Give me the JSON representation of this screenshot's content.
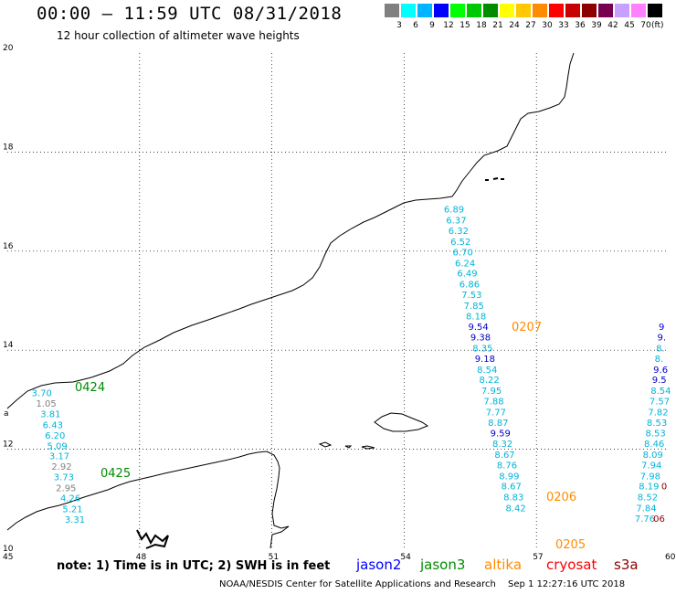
{
  "header": {
    "title": "00:00 – 11:59 UTC 08/31/2018",
    "subtitle": "12 hour collection of altimeter wave heights"
  },
  "legend": {
    "unit": "(ft)",
    "bins": [
      {
        "label": "3",
        "color": "#808080"
      },
      {
        "label": "6",
        "color": "#00ffff"
      },
      {
        "label": "9",
        "color": "#00b4ff"
      },
      {
        "label": "12",
        "color": "#0000ff"
      },
      {
        "label": "15",
        "color": "#00ff00"
      },
      {
        "label": "18",
        "color": "#00c800"
      },
      {
        "label": "21",
        "color": "#008c00"
      },
      {
        "label": "24",
        "color": "#ffff00"
      },
      {
        "label": "27",
        "color": "#ffc800"
      },
      {
        "label": "30",
        "color": "#ff8c00"
      },
      {
        "label": "33",
        "color": "#ff0000"
      },
      {
        "label": "36",
        "color": "#c80000"
      },
      {
        "label": "39",
        "color": "#8c0000"
      },
      {
        "label": "42",
        "color": "#780050"
      },
      {
        "label": "45",
        "color": "#c8a0ff"
      },
      {
        "label": "70",
        "color": "#ff80ff"
      },
      {
        "label": "",
        "color": "#000000"
      }
    ]
  },
  "map": {
    "lon_ticks": [
      "45",
      "48",
      "51",
      "54",
      "57",
      "60"
    ],
    "lat_ticks": [
      "10",
      "12",
      "14",
      "16",
      "18",
      "20"
    ],
    "lon_range": [
      45,
      60
    ],
    "lat_range": [
      10,
      20
    ]
  },
  "tracks": [
    {
      "name": "jason3-0424",
      "time_label": "0424",
      "time_color": "#008c00",
      "points": [
        {
          "lon": 45.8,
          "lat": 13.15,
          "v": "3.70",
          "c": "#00b4d8"
        },
        {
          "lon": 45.9,
          "lat": 12.93,
          "v": "1.05",
          "c": "#808080"
        },
        {
          "lon": 46.0,
          "lat": 12.72,
          "v": "3.81",
          "c": "#00b4d8"
        },
        {
          "lon": 46.05,
          "lat": 12.5,
          "v": "6.43",
          "c": "#00b4d8"
        },
        {
          "lon": 46.1,
          "lat": 12.29,
          "v": "6.20",
          "c": "#00b4d8"
        },
        {
          "lon": 46.15,
          "lat": 12.08,
          "v": "5.09",
          "c": "#00b4d8"
        },
        {
          "lon": 46.2,
          "lat": 11.87,
          "v": "3.17",
          "c": "#00b4d8"
        },
        {
          "lon": 46.25,
          "lat": 11.66,
          "v": "2.92",
          "c": "#808080"
        },
        {
          "lon": 46.3,
          "lat": 11.45,
          "v": "3.73",
          "c": "#00b4d8"
        },
        {
          "lon": 46.35,
          "lat": 11.23,
          "v": "2.95",
          "c": "#808080"
        },
        {
          "lon": 46.45,
          "lat": 11.02,
          "v": "4.26",
          "c": "#00b4d8"
        },
        {
          "lon": 46.5,
          "lat": 10.8,
          "v": "5.21",
          "c": "#00b4d8"
        },
        {
          "lon": 46.55,
          "lat": 10.59,
          "v": "3.31",
          "c": "#00b4d8"
        }
      ]
    },
    {
      "name": "jason3-0425",
      "time_label": "0425",
      "time_color": "#008c00",
      "points": []
    },
    {
      "name": "altika-0207",
      "time_label": "0207",
      "time_color": "#ff8c00",
      "points": [
        {
          "lon": 55.15,
          "lat": 16.85,
          "v": "6.89",
          "c": "#00b4d8"
        },
        {
          "lon": 55.2,
          "lat": 16.63,
          "v": "6.37",
          "c": "#00b4d8"
        },
        {
          "lon": 55.25,
          "lat": 16.42,
          "v": "6.32",
          "c": "#00b4d8"
        },
        {
          "lon": 55.3,
          "lat": 16.2,
          "v": "6.52",
          "c": "#00b4d8"
        },
        {
          "lon": 55.35,
          "lat": 15.99,
          "v": "6.70",
          "c": "#00b4d8"
        },
        {
          "lon": 55.4,
          "lat": 15.77,
          "v": "6.24",
          "c": "#00b4d8"
        },
        {
          "lon": 55.45,
          "lat": 15.56,
          "v": "6.49",
          "c": "#00b4d8"
        },
        {
          "lon": 55.5,
          "lat": 15.34,
          "v": "6.86",
          "c": "#00b4d8"
        },
        {
          "lon": 55.55,
          "lat": 15.13,
          "v": "7.53",
          "c": "#00b4d8"
        },
        {
          "lon": 55.6,
          "lat": 14.91,
          "v": "7.85",
          "c": "#00b4d8"
        },
        {
          "lon": 55.65,
          "lat": 14.7,
          "v": "8.18",
          "c": "#00b4d8"
        },
        {
          "lon": 55.7,
          "lat": 14.48,
          "v": "9.54",
          "c": "#0000c8"
        },
        {
          "lon": 55.75,
          "lat": 14.27,
          "v": "9.38",
          "c": "#0000c8"
        },
        {
          "lon": 55.8,
          "lat": 14.05,
          "v": "8.35",
          "c": "#00b4d8"
        },
        {
          "lon": 55.85,
          "lat": 13.84,
          "v": "9.18",
          "c": "#0000c8"
        },
        {
          "lon": 55.9,
          "lat": 13.62,
          "v": "8.54",
          "c": "#00b4d8"
        },
        {
          "lon": 55.95,
          "lat": 13.41,
          "v": "8.22",
          "c": "#00b4d8"
        },
        {
          "lon": 56.0,
          "lat": 13.19,
          "v": "7.95",
          "c": "#00b4d8"
        },
        {
          "lon": 56.05,
          "lat": 12.98,
          "v": "7.88",
          "c": "#00b4d8"
        },
        {
          "lon": 56.1,
          "lat": 12.76,
          "v": "7.77",
          "c": "#00b4d8"
        },
        {
          "lon": 56.15,
          "lat": 12.55,
          "v": "8.87",
          "c": "#00b4d8"
        },
        {
          "lon": 56.2,
          "lat": 12.33,
          "v": "9.59",
          "c": "#0000c8"
        },
        {
          "lon": 56.25,
          "lat": 12.12,
          "v": "8.32",
          "c": "#00b4d8"
        },
        {
          "lon": 56.3,
          "lat": 11.9,
          "v": "8.67",
          "c": "#00b4d8"
        },
        {
          "lon": 56.35,
          "lat": 11.69,
          "v": "8.76",
          "c": "#00b4d8"
        },
        {
          "lon": 56.4,
          "lat": 11.47,
          "v": "8.99",
          "c": "#00b4d8"
        },
        {
          "lon": 56.45,
          "lat": 11.26,
          "v": "8.67",
          "c": "#00b4d8"
        },
        {
          "lon": 56.5,
          "lat": 11.04,
          "v": "8.83",
          "c": "#00b4d8"
        },
        {
          "lon": 56.55,
          "lat": 10.82,
          "v": "8.42",
          "c": "#00b4d8"
        }
      ]
    },
    {
      "name": "altika-0206",
      "time_label": "0206",
      "time_color": "#ff8c00",
      "points": []
    },
    {
      "name": "altika-0205",
      "time_label": "0205",
      "time_color": "#ff8c00",
      "points": []
    },
    {
      "name": "right-track",
      "time_label": "",
      "time_color": "#ff8c00",
      "points": [
        {
          "lon": 60.02,
          "lat": 14.48,
          "v": "9",
          "c": "#0000c8"
        },
        {
          "lon": 59.99,
          "lat": 14.27,
          "v": "9.",
          "c": "#0000c8"
        },
        {
          "lon": 59.96,
          "lat": 14.05,
          "v": "8.",
          "c": "#00b4d8"
        },
        {
          "lon": 59.93,
          "lat": 13.84,
          "v": "8.",
          "c": "#00b4d8"
        },
        {
          "lon": 59.9,
          "lat": 13.62,
          "v": "9.6",
          "c": "#0000c8"
        },
        {
          "lon": 59.87,
          "lat": 13.41,
          "v": "9.5",
          "c": "#0000c8"
        },
        {
          "lon": 59.84,
          "lat": 13.19,
          "v": "8.54",
          "c": "#00b4d8"
        },
        {
          "lon": 59.81,
          "lat": 12.98,
          "v": "7.57",
          "c": "#00b4d8"
        },
        {
          "lon": 59.78,
          "lat": 12.76,
          "v": "7.82",
          "c": "#00b4d8"
        },
        {
          "lon": 59.75,
          "lat": 12.55,
          "v": "8.53",
          "c": "#00b4d8"
        },
        {
          "lon": 59.72,
          "lat": 12.33,
          "v": "8.53",
          "c": "#00b4d8"
        },
        {
          "lon": 59.69,
          "lat": 12.12,
          "v": "8.46",
          "c": "#00b4d8"
        },
        {
          "lon": 59.66,
          "lat": 11.9,
          "v": "8.09",
          "c": "#00b4d8"
        },
        {
          "lon": 59.63,
          "lat": 11.69,
          "v": "7.94",
          "c": "#00b4d8"
        },
        {
          "lon": 59.6,
          "lat": 11.47,
          "v": "7.98",
          "c": "#00b4d8"
        },
        {
          "lon": 59.57,
          "lat": 11.26,
          "v": "8.19",
          "c": "#00b4d8"
        },
        {
          "lon": 59.54,
          "lat": 11.04,
          "v": "8.52",
          "c": "#00b4d8"
        },
        {
          "lon": 59.51,
          "lat": 10.82,
          "v": "7.84",
          "c": "#00b4d8"
        },
        {
          "lon": 59.48,
          "lat": 10.61,
          "v": "7.76",
          "c": "#00b4d8"
        }
      ]
    },
    {
      "name": "s3a-edge",
      "time_label": "",
      "time_color": "#8c0000",
      "points": [
        {
          "lon": 60.08,
          "lat": 11.26,
          "v": "0",
          "c": "#8c0000"
        },
        {
          "lon": 59.9,
          "lat": 10.61,
          "v": "06",
          "c": "#8c0000"
        }
      ]
    }
  ],
  "footer": {
    "note": "note: 1) Time is in UTC; 2) SWH is in feet",
    "satellites": [
      {
        "label": "jason2",
        "color": "#0000ff"
      },
      {
        "label": "jason3",
        "color": "#008c00"
      },
      {
        "label": "altika",
        "color": "#ff8c00"
      },
      {
        "label": "cryosat",
        "color": "#ff0000"
      },
      {
        "label": "s3a",
        "color": "#8c0000"
      }
    ],
    "credit": "NOAA/NESDIS Center for Satellite Applications and Research",
    "timestamp": "Sep  1 12:27:16 UTC 2018"
  }
}
